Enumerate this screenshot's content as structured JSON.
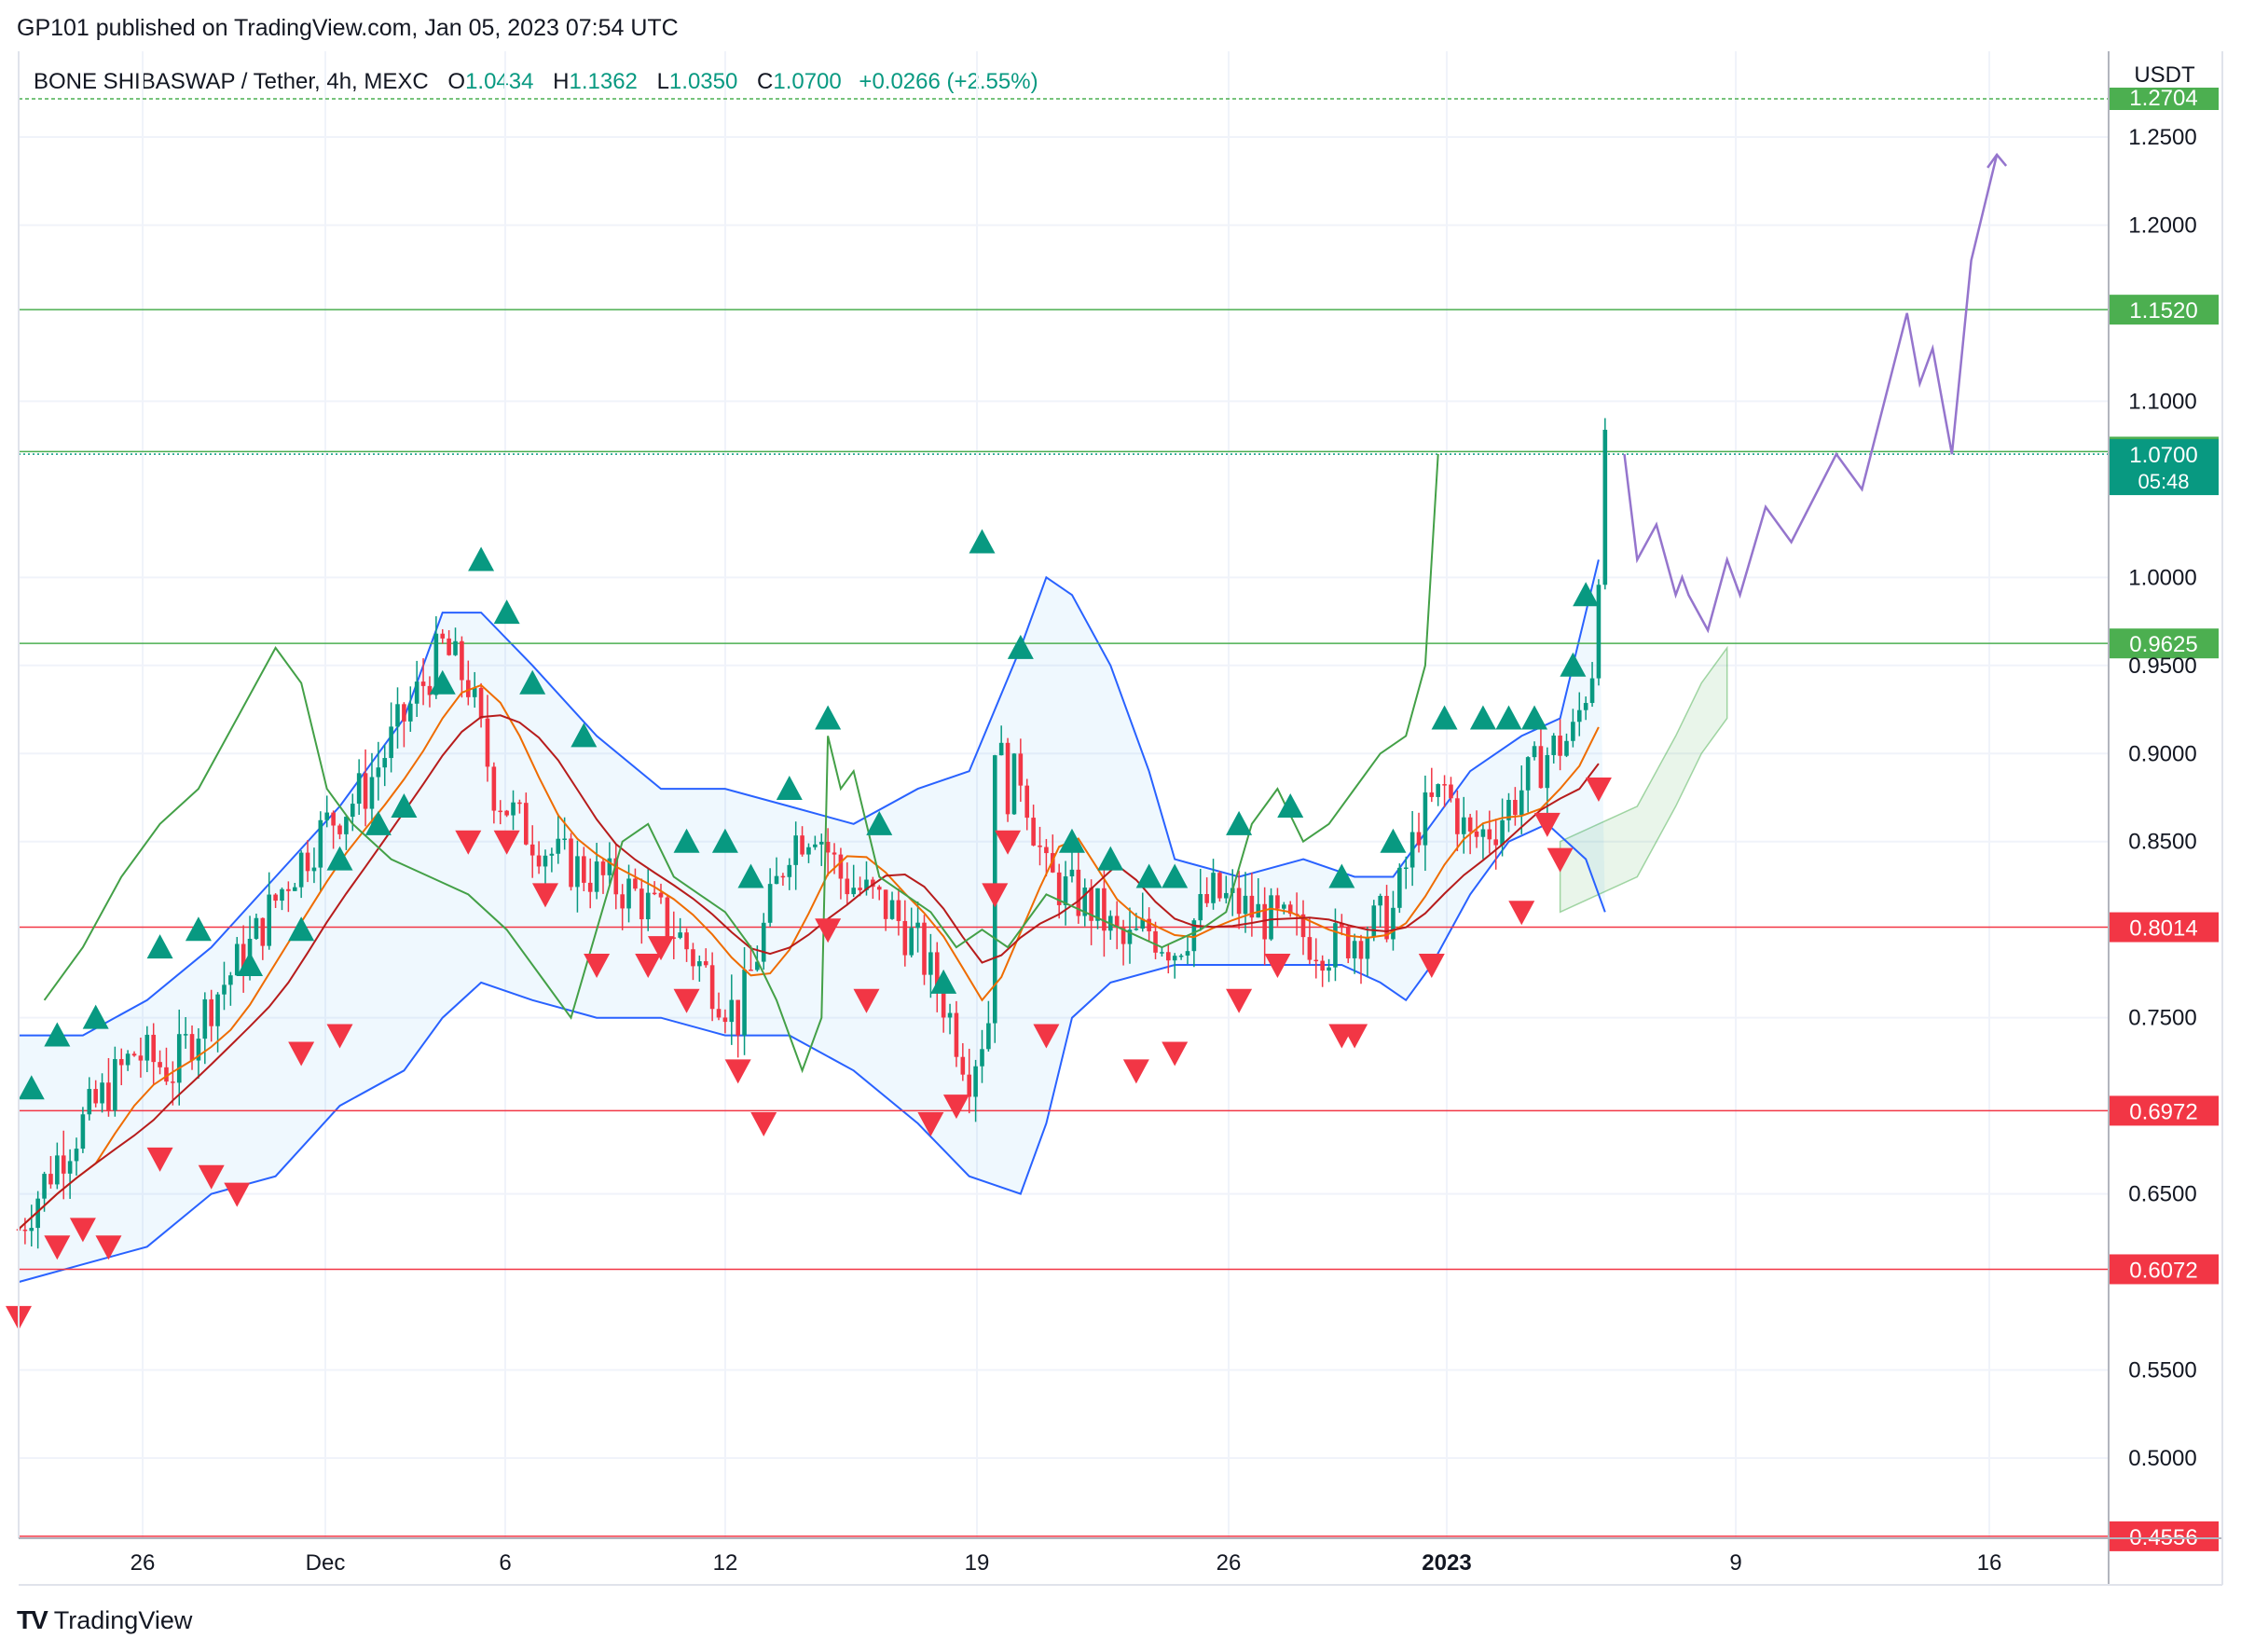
{
  "header": {
    "published": "GP101 published on TradingView.com, Jan 05, 2023 07:54 UTC"
  },
  "legend": {
    "symbol": "BONE SHIBASWAP / Tether, 4h, MEXC",
    "o_label": "O",
    "o_value": "1.0434",
    "h_label": "H",
    "h_value": "1.1362",
    "l_label": "L",
    "l_value": "1.0350",
    "c_label": "C",
    "c_value": "1.0700",
    "change": "+0.0266 (+2.55%)"
  },
  "brand": {
    "logo_text": "TV",
    "name": "TradingView"
  },
  "colors": {
    "up": "#089981",
    "down": "#f23645",
    "bb": "#2962ff",
    "green_line": "#4caf50",
    "red_line": "#f23645",
    "projection": "#9575cd",
    "ma_orange": "#ef6c00",
    "kijun": "#b71c1c",
    "chikou": "#43a047"
  },
  "chart_data": {
    "type": "candlestick",
    "currency": "USDT",
    "ylim": [
      0.44,
      1.28
    ],
    "y_ticks": [
      "1.2500",
      "1.2000",
      "1.1000",
      "1.0000",
      "0.9500",
      "0.9000",
      "0.8500",
      "0.7500",
      "0.6500",
      "0.5500",
      "0.5000"
    ],
    "x_ticks": [
      "26",
      "Dec",
      "6",
      "12",
      "19",
      "26",
      "2023",
      "9",
      "16"
    ],
    "last_price": {
      "value": "1.0700",
      "countdown": "05:48"
    },
    "hidden_badge": "1.2704",
    "levels": [
      {
        "value": "1.1520",
        "color": "#4caf50"
      },
      {
        "value": "1.0714",
        "color": "#4caf50"
      },
      {
        "value": "0.9625",
        "color": "#4caf50"
      },
      {
        "value": "0.8014",
        "color": "#f23645"
      },
      {
        "value": "0.6972",
        "color": "#f23645"
      },
      {
        "value": "0.6072",
        "color": "#f23645"
      },
      {
        "value": "0.4556",
        "color": "#f23645"
      }
    ],
    "close_path": [
      [
        0,
        0.63
      ],
      [
        6,
        0.67
      ],
      [
        12,
        0.7
      ],
      [
        18,
        0.73
      ],
      [
        24,
        0.72
      ],
      [
        30,
        0.76
      ],
      [
        36,
        0.79
      ],
      [
        42,
        0.83
      ],
      [
        48,
        0.86
      ],
      [
        54,
        0.88
      ],
      [
        60,
        0.92
      ],
      [
        66,
        0.96
      ],
      [
        70,
        0.94
      ],
      [
        74,
        0.88
      ],
      [
        78,
        0.86
      ],
      [
        84,
        0.84
      ],
      [
        90,
        0.83
      ],
      [
        96,
        0.82
      ],
      [
        102,
        0.8
      ],
      [
        108,
        0.77
      ],
      [
        112,
        0.75
      ],
      [
        116,
        0.8
      ],
      [
        120,
        0.85
      ],
      [
        124,
        0.86
      ],
      [
        128,
        0.83
      ],
      [
        132,
        0.82
      ],
      [
        136,
        0.81
      ],
      [
        140,
        0.79
      ],
      [
        144,
        0.76
      ],
      [
        148,
        0.72
      ],
      [
        151,
        0.75
      ],
      [
        152,
        0.91
      ],
      [
        154,
        0.88
      ],
      [
        156,
        0.89
      ],
      [
        160,
        0.83
      ],
      [
        164,
        0.82
      ],
      [
        168,
        0.81
      ],
      [
        172,
        0.79
      ],
      [
        176,
        0.8
      ],
      [
        180,
        0.79
      ],
      [
        186,
        0.82
      ],
      [
        192,
        0.81
      ],
      [
        198,
        0.8
      ],
      [
        204,
        0.79
      ],
      [
        210,
        0.8
      ],
      [
        214,
        0.81
      ],
      [
        218,
        0.86
      ],
      [
        222,
        0.88
      ],
      [
        226,
        0.85
      ],
      [
        230,
        0.86
      ],
      [
        234,
        0.88
      ],
      [
        238,
        0.9
      ],
      [
        242,
        0.91
      ],
      [
        245,
        0.95
      ],
      [
        247,
        1.07
      ]
    ],
    "bollinger": {
      "upper": [
        [
          0,
          0.74
        ],
        [
          10,
          0.74
        ],
        [
          20,
          0.76
        ],
        [
          30,
          0.79
        ],
        [
          40,
          0.83
        ],
        [
          50,
          0.87
        ],
        [
          60,
          0.92
        ],
        [
          66,
          0.98
        ],
        [
          72,
          0.98
        ],
        [
          80,
          0.95
        ],
        [
          90,
          0.91
        ],
        [
          100,
          0.88
        ],
        [
          110,
          0.88
        ],
        [
          120,
          0.87
        ],
        [
          130,
          0.86
        ],
        [
          140,
          0.88
        ],
        [
          148,
          0.89
        ],
        [
          156,
          0.96
        ],
        [
          160,
          1.0
        ],
        [
          164,
          0.99
        ],
        [
          170,
          0.95
        ],
        [
          176,
          0.89
        ],
        [
          180,
          0.84
        ],
        [
          190,
          0.83
        ],
        [
          200,
          0.84
        ],
        [
          208,
          0.83
        ],
        [
          214,
          0.83
        ],
        [
          220,
          0.86
        ],
        [
          226,
          0.89
        ],
        [
          234,
          0.91
        ],
        [
          240,
          0.92
        ],
        [
          246,
          1.01
        ]
      ],
      "lower": [
        [
          0,
          0.6
        ],
        [
          10,
          0.61
        ],
        [
          20,
          0.62
        ],
        [
          30,
          0.65
        ],
        [
          40,
          0.66
        ],
        [
          50,
          0.7
        ],
        [
          60,
          0.72
        ],
        [
          66,
          0.75
        ],
        [
          72,
          0.77
        ],
        [
          80,
          0.76
        ],
        [
          90,
          0.75
        ],
        [
          100,
          0.75
        ],
        [
          110,
          0.74
        ],
        [
          120,
          0.74
        ],
        [
          130,
          0.72
        ],
        [
          140,
          0.69
        ],
        [
          148,
          0.66
        ],
        [
          156,
          0.65
        ],
        [
          160,
          0.69
        ],
        [
          164,
          0.75
        ],
        [
          170,
          0.77
        ],
        [
          180,
          0.78
        ],
        [
          190,
          0.78
        ],
        [
          200,
          0.78
        ],
        [
          206,
          0.78
        ],
        [
          212,
          0.77
        ],
        [
          216,
          0.76
        ],
        [
          220,
          0.78
        ],
        [
          226,
          0.82
        ],
        [
          232,
          0.85
        ],
        [
          238,
          0.86
        ],
        [
          244,
          0.84
        ],
        [
          247,
          0.81
        ]
      ]
    },
    "projection": [
      [
        250,
        1.07
      ],
      [
        252,
        1.01
      ],
      [
        255,
        1.03
      ],
      [
        258,
        0.99
      ],
      [
        259,
        1.0
      ],
      [
        260,
        0.99
      ],
      [
        263,
        0.97
      ],
      [
        266,
        1.01
      ],
      [
        268,
        0.99
      ],
      [
        272,
        1.04
      ],
      [
        276,
        1.02
      ],
      [
        283,
        1.07
      ],
      [
        287,
        1.05
      ],
      [
        294,
        1.15
      ],
      [
        296,
        1.11
      ],
      [
        298,
        1.13
      ],
      [
        301,
        1.07
      ],
      [
        304,
        1.18
      ],
      [
        308,
        1.24
      ]
    ],
    "future_cloud": [
      [
        240,
        0.85
      ],
      [
        246,
        0.86
      ],
      [
        252,
        0.87
      ],
      [
        258,
        0.91
      ],
      [
        262,
        0.94
      ],
      [
        266,
        0.96
      ]
    ],
    "markers_up": [
      [
        2,
        0.71
      ],
      [
        6,
        0.74
      ],
      [
        12,
        0.75
      ],
      [
        22,
        0.79
      ],
      [
        28,
        0.8
      ],
      [
        36,
        0.78
      ],
      [
        44,
        0.8
      ],
      [
        50,
        0.84
      ],
      [
        56,
        0.86
      ],
      [
        60,
        0.87
      ],
      [
        66,
        0.94
      ],
      [
        72,
        1.01
      ],
      [
        76,
        0.98
      ],
      [
        80,
        0.94
      ],
      [
        88,
        0.91
      ],
      [
        104,
        0.85
      ],
      [
        110,
        0.85
      ],
      [
        114,
        0.83
      ],
      [
        120,
        0.88
      ],
      [
        126,
        0.92
      ],
      [
        134,
        0.86
      ],
      [
        144,
        0.77
      ],
      [
        150,
        1.02
      ],
      [
        156,
        0.96
      ],
      [
        164,
        0.85
      ],
      [
        170,
        0.84
      ],
      [
        176,
        0.83
      ],
      [
        180,
        0.83
      ],
      [
        190,
        0.86
      ],
      [
        198,
        0.87
      ],
      [
        206,
        0.83
      ],
      [
        214,
        0.85
      ],
      [
        222,
        0.92
      ],
      [
        228,
        0.92
      ],
      [
        232,
        0.92
      ],
      [
        236,
        0.92
      ],
      [
        242,
        0.95
      ],
      [
        244,
        0.99
      ]
    ],
    "markers_down": [
      [
        0,
        0.58
      ],
      [
        6,
        0.62
      ],
      [
        10,
        0.63
      ],
      [
        14,
        0.62
      ],
      [
        22,
        0.67
      ],
      [
        30,
        0.66
      ],
      [
        34,
        0.65
      ],
      [
        44,
        0.73
      ],
      [
        50,
        0.74
      ],
      [
        70,
        0.85
      ],
      [
        76,
        0.85
      ],
      [
        82,
        0.82
      ],
      [
        90,
        0.78
      ],
      [
        98,
        0.78
      ],
      [
        100,
        0.79
      ],
      [
        104,
        0.76
      ],
      [
        112,
        0.72
      ],
      [
        116,
        0.69
      ],
      [
        126,
        0.8
      ],
      [
        132,
        0.76
      ],
      [
        142,
        0.69
      ],
      [
        146,
        0.7
      ],
      [
        152,
        0.82
      ],
      [
        154,
        0.85
      ],
      [
        160,
        0.74
      ],
      [
        174,
        0.72
      ],
      [
        180,
        0.73
      ],
      [
        190,
        0.76
      ],
      [
        196,
        0.78
      ],
      [
        206,
        0.74
      ],
      [
        208,
        0.74
      ],
      [
        220,
        0.78
      ],
      [
        234,
        0.81
      ],
      [
        238,
        0.86
      ],
      [
        240,
        0.84
      ],
      [
        246,
        0.88
      ]
    ]
  }
}
